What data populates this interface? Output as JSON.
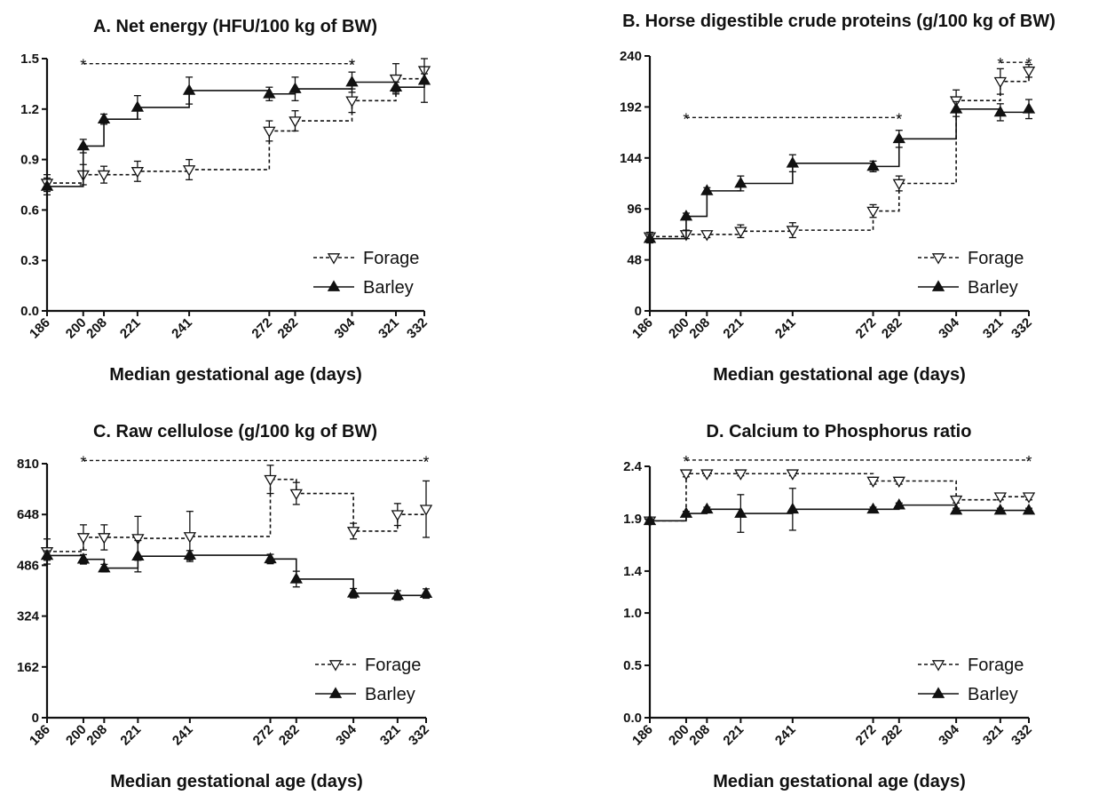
{
  "chart_data": [
    {
      "type": "line",
      "title": "A. Net energy (HFU/100 kg of BW)",
      "xlabel": "Median gestational age (days)",
      "ylabel": "",
      "x": [
        186,
        200,
        208,
        221,
        241,
        272,
        282,
        304,
        321,
        332
      ],
      "x_tick_labels": [
        "186",
        "200",
        "208",
        "221",
        "241",
        "272",
        "282",
        "304",
        "321",
        "332"
      ],
      "ylim": [
        0,
        1.5
      ],
      "y_ticks": [
        0.0,
        0.3,
        0.6,
        0.9,
        1.2,
        1.5
      ],
      "y_tick_labels": [
        "0.0",
        "0.3",
        "0.6",
        "0.9",
        "1.2",
        "1.5"
      ],
      "legend": "bottom-right",
      "series": [
        {
          "name": "Forage",
          "marker": "open-triangle-down",
          "line": "dashed",
          "values": [
            0.76,
            0.81,
            0.81,
            0.83,
            0.84,
            1.07,
            1.13,
            1.25,
            1.38,
            1.43
          ],
          "errors": [
            0.05,
            0.06,
            0.05,
            0.06,
            0.06,
            0.06,
            0.06,
            0.07,
            0.09,
            0.02
          ]
        },
        {
          "name": "Barley",
          "marker": "filled-triangle-up",
          "line": "solid",
          "values": [
            0.74,
            0.98,
            1.14,
            1.21,
            1.31,
            1.29,
            1.32,
            1.36,
            1.33,
            1.37
          ],
          "errors": [
            0.05,
            0.04,
            0.03,
            0.07,
            0.08,
            0.04,
            0.07,
            0.06,
            0.03,
            0.13
          ]
        }
      ],
      "significance": [
        {
          "label": "*",
          "from": 200,
          "to": 304,
          "y": 1.47
        },
        {
          "label": "*",
          "from": 304,
          "to": 304,
          "y": 1.47
        }
      ]
    },
    {
      "type": "line",
      "title": "B. Horse digestible crude proteins (g/100 kg of BW)",
      "xlabel": "Median gestational age (days)",
      "ylabel": "",
      "x": [
        186,
        200,
        208,
        221,
        241,
        272,
        282,
        304,
        321,
        332
      ],
      "x_tick_labels": [
        "186",
        "200",
        "208",
        "221",
        "241",
        "272",
        "282",
        "304",
        "321",
        "332"
      ],
      "ylim": [
        0,
        240
      ],
      "y_ticks": [
        0,
        48,
        96,
        144,
        192,
        240
      ],
      "y_tick_labels": [
        "0",
        "48",
        "96",
        "144",
        "192",
        "240"
      ],
      "legend": "bottom-right",
      "series": [
        {
          "name": "Forage",
          "marker": "open-triangle-down",
          "line": "dashed",
          "values": [
            70,
            72,
            72,
            75,
            76,
            94,
            120,
            198,
            216,
            226
          ],
          "errors": [
            4,
            4,
            3,
            6,
            7,
            6,
            7,
            10,
            12,
            6
          ]
        },
        {
          "name": "Barley",
          "marker": "filled-triangle-up",
          "line": "solid",
          "values": [
            68,
            89,
            113,
            120,
            139,
            136,
            162,
            190,
            187,
            190
          ],
          "errors": [
            4,
            3,
            3,
            7,
            8,
            5,
            8,
            7,
            8,
            9
          ]
        }
      ],
      "significance": [
        {
          "label": "*",
          "from": 200,
          "to": 282,
          "y": 182
        },
        {
          "label": "*",
          "from": 321,
          "to": 332,
          "y": 234
        }
      ]
    },
    {
      "type": "line",
      "title": "C. Raw cellulose (g/100 kg of BW)",
      "xlabel": "Median gestational age (days)",
      "ylabel": "",
      "x": [
        186,
        200,
        208,
        221,
        241,
        272,
        282,
        304,
        321,
        332
      ],
      "x_tick_labels": [
        "186",
        "200",
        "208",
        "221",
        "241",
        "272",
        "282",
        "304",
        "321",
        "332"
      ],
      "ylim": [
        0,
        810
      ],
      "y_ticks": [
        0,
        162,
        324,
        486,
        648,
        810
      ],
      "y_tick_labels": [
        "0",
        "162",
        "324",
        "486",
        "648",
        "810"
      ],
      "legend": "bottom-right",
      "series": [
        {
          "name": "Forage",
          "marker": "open-triangle-down",
          "line": "dashed",
          "values": [
            530,
            575,
            575,
            572,
            578,
            760,
            715,
            595,
            648,
            665
          ],
          "errors": [
            40,
            40,
            40,
            70,
            80,
            45,
            35,
            25,
            35,
            90
          ]
        },
        {
          "name": "Barley",
          "marker": "filled-triangle-up",
          "line": "solid",
          "values": [
            517,
            505,
            477,
            515,
            518,
            506,
            442,
            397,
            390,
            396
          ],
          "errors": [
            15,
            15,
            12,
            50,
            15,
            15,
            25,
            15,
            15,
            15
          ]
        }
      ],
      "significance": [
        {
          "label": "*",
          "from": 200,
          "to": 332,
          "y": 820
        }
      ]
    },
    {
      "type": "line",
      "title": "D. Calcium to Phosphorus ratio",
      "xlabel": "Median gestational age (days)",
      "ylabel": "",
      "x": [
        186,
        200,
        208,
        221,
        241,
        272,
        282,
        304,
        321,
        332
      ],
      "x_tick_labels": [
        "186",
        "200",
        "208",
        "221",
        "241",
        "272",
        "282",
        "304",
        "321",
        "332"
      ],
      "ylim": [
        0,
        2.4
      ],
      "y_ticks": [
        0.0,
        0.5,
        1.0,
        1.4,
        1.9,
        2.4
      ],
      "y_tick_labels": [
        "0.0",
        "0.5",
        "1.0",
        "1.4",
        "1.9",
        "2.4"
      ],
      "legend": "bottom-right",
      "series": [
        {
          "name": "Forage",
          "marker": "open-triangle-down",
          "line": "dashed",
          "values": [
            1.88,
            2.33,
            2.33,
            2.33,
            2.33,
            2.26,
            2.26,
            2.08,
            2.11,
            2.11
          ],
          "errors": [
            0.02,
            0.03,
            0.02,
            0.02,
            0.02,
            0.03,
            0.03,
            0.03,
            0.03,
            0.03
          ]
        },
        {
          "name": "Barley",
          "marker": "filled-triangle-up",
          "line": "solid",
          "values": [
            1.88,
            1.95,
            1.99,
            1.95,
            1.99,
            1.99,
            2.03,
            1.98,
            1.98,
            1.98
          ],
          "errors": [
            0.02,
            0.02,
            0.02,
            0.18,
            0.2,
            0.02,
            0.02,
            0.02,
            0.02,
            0.02
          ]
        }
      ],
      "significance": [
        {
          "label": "*",
          "from": 200,
          "to": 332,
          "y": 2.46
        }
      ]
    }
  ]
}
